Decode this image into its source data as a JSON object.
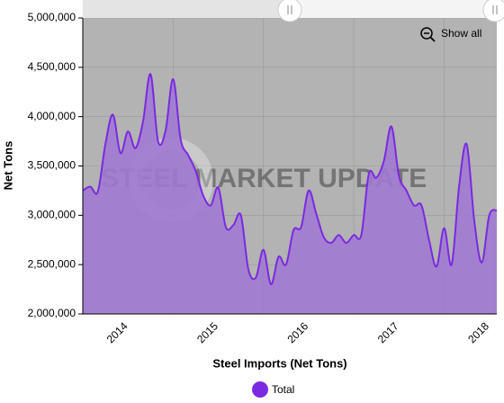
{
  "chart_data": {
    "type": "area",
    "x_label": "Steel Imports (Net Tons)",
    "y_label": "Net Tons",
    "watermark": "STEEL MARKET UPDATE",
    "zoom_button": "Show all",
    "categories": [
      null,
      null,
      null,
      null,
      null,
      null,
      "2014",
      null,
      null,
      null,
      null,
      null,
      null,
      null,
      null,
      null,
      null,
      null,
      "2015",
      null,
      null,
      null,
      null,
      null,
      null,
      null,
      null,
      null,
      null,
      null,
      "2016",
      null,
      null,
      null,
      null,
      null,
      null,
      null,
      null,
      null,
      null,
      null,
      "2017",
      null,
      null,
      null,
      null,
      null,
      null,
      null,
      null,
      null,
      null,
      null,
      "2018",
      null
    ],
    "series": [
      {
        "name": "Total",
        "color": "#7a2ae0",
        "fill": "#a07ad2",
        "values": [
          3250000,
          3290000,
          3240000,
          3720000,
          4020000,
          3630000,
          3850000,
          3680000,
          3950000,
          4430000,
          3750000,
          3860000,
          4380000,
          3770000,
          3610000,
          3450000,
          3200000,
          3100000,
          3280000,
          2880000,
          2900000,
          3000000,
          2450000,
          2370000,
          2650000,
          2300000,
          2580000,
          2500000,
          2850000,
          2880000,
          3250000,
          3020000,
          2780000,
          2720000,
          2800000,
          2720000,
          2800000,
          2800000,
          3420000,
          3380000,
          3550000,
          3900000,
          3400000,
          3250000,
          3100000,
          3100000,
          2750000,
          2480000,
          2870000,
          2500000,
          3300000,
          3720000,
          2950000,
          2520000,
          3000000,
          3050000
        ]
      }
    ],
    "ylim": [
      2000000,
      5000000
    ],
    "yticks": [
      {
        "value": 2000000,
        "label": "2,000,000"
      },
      {
        "value": 2500000,
        "label": "2,500,000"
      },
      {
        "value": 3000000,
        "label": "3,000,000"
      },
      {
        "value": 3500000,
        "label": "3,500,000"
      },
      {
        "value": 4000000,
        "label": "4,000,000"
      },
      {
        "value": 4500000,
        "label": "4,500,000"
      },
      {
        "value": 5000000,
        "label": "5,000,000"
      }
    ],
    "grid": true,
    "legend": "bottom",
    "background": "#b3b3b3"
  }
}
